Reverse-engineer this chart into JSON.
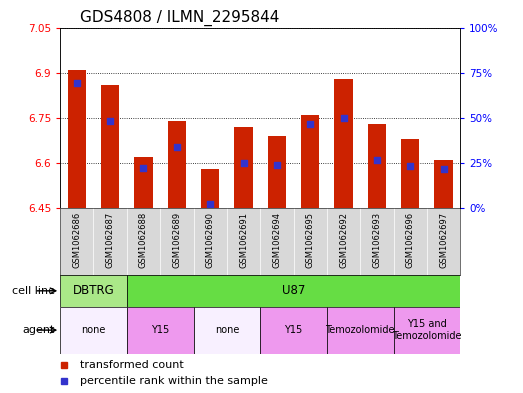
{
  "title": "GDS4808 / ILMN_2295844",
  "samples": [
    "GSM1062686",
    "GSM1062687",
    "GSM1062688",
    "GSM1062689",
    "GSM1062690",
    "GSM1062691",
    "GSM1062694",
    "GSM1062695",
    "GSM1062692",
    "GSM1062693",
    "GSM1062696",
    "GSM1062697"
  ],
  "bar_values": [
    6.91,
    6.86,
    6.62,
    6.74,
    6.58,
    6.72,
    6.69,
    6.76,
    6.88,
    6.73,
    6.68,
    6.61
  ],
  "blue_dot_values": [
    6.865,
    6.74,
    6.585,
    6.655,
    6.465,
    6.6,
    6.595,
    6.73,
    6.75,
    6.61,
    6.59,
    6.58
  ],
  "ymin": 6.45,
  "ymax": 7.05,
  "yticks": [
    6.45,
    6.6,
    6.75,
    6.9,
    7.05
  ],
  "right_ytick_labels": [
    "0%",
    "25%",
    "50%",
    "75%",
    "100%"
  ],
  "right_ytick_percs": [
    0,
    25,
    50,
    75,
    100
  ],
  "bar_color": "#cc2200",
  "dot_color": "#3333cc",
  "bar_width": 0.55,
  "cell_line_groups": [
    {
      "label": "DBTRG",
      "start": 0,
      "end": 2,
      "color": "#aae888"
    },
    {
      "label": "U87",
      "start": 2,
      "end": 12,
      "color": "#66dd44"
    }
  ],
  "agent_groups": [
    {
      "label": "none",
      "start": 0,
      "end": 2,
      "color": "#f8f0ff"
    },
    {
      "label": "Y15",
      "start": 2,
      "end": 4,
      "color": "#ee99ee"
    },
    {
      "label": "none",
      "start": 4,
      "end": 6,
      "color": "#f8f0ff"
    },
    {
      "label": "Y15",
      "start": 6,
      "end": 8,
      "color": "#ee99ee"
    },
    {
      "label": "Temozolomide",
      "start": 8,
      "end": 10,
      "color": "#ee99ee"
    },
    {
      "label": "Y15 and\nTemozolomide",
      "start": 10,
      "end": 12,
      "color": "#ee99ee"
    }
  ],
  "legend_items": [
    {
      "label": "transformed count",
      "color": "#cc2200",
      "marker": "s"
    },
    {
      "label": "percentile rank within the sample",
      "color": "#3333cc",
      "marker": "s"
    }
  ],
  "sample_bg_color": "#d8d8d8",
  "plot_bg_color": "#ffffff",
  "title_fontsize": 11,
  "tick_fontsize": 7.5,
  "sample_fontsize": 6.0,
  "row_label_fontsize": 8,
  "legend_fontsize": 8
}
